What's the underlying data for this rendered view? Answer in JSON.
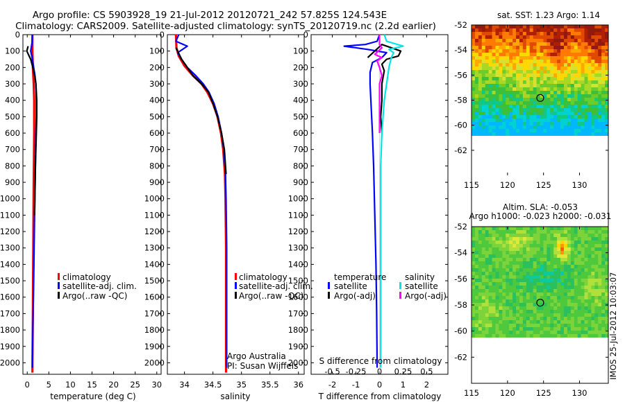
{
  "title": {
    "line1": "Argo profile: CS 5903928_19 21-Jul-2012 20120721_242 57.825S 124.543E",
    "line2": "Climatology: CARS2009. Satellite-adjusted climatology: synTS_20120719.nc (2.2d earlier)"
  },
  "side_label": "IMOS 25-Jul-2012 10:03:07",
  "colors": {
    "climatology": "#ff0000",
    "satellite": "#0000ff",
    "argo": "#000000",
    "sal_satellite": "#00e5e5",
    "sal_argo": "#ff00ff"
  },
  "depth_ticks": [
    0,
    100,
    200,
    300,
    400,
    500,
    600,
    700,
    800,
    900,
    1000,
    1100,
    1200,
    1300,
    1400,
    1500,
    1600,
    1700,
    1800,
    1900,
    2000
  ],
  "chart_data": [
    {
      "type": "line",
      "panel": "temperature",
      "xlabel": "temperature (deg C)",
      "ylabel": "",
      "xlim": [
        -1,
        31
      ],
      "ylim": [
        2070,
        0
      ],
      "xticks": [
        0,
        5,
        10,
        15,
        20,
        25,
        30
      ],
      "legend": [
        "climatology",
        "satellite-adj. clim.",
        "Argo(..raw -QC)"
      ],
      "series": [
        {
          "name": "climatology",
          "color": "#ff0000",
          "points": [
            [
              1.2,
              0
            ],
            [
              1.2,
              100
            ],
            [
              1.3,
              200
            ],
            [
              1.5,
              300
            ],
            [
              1.6,
              400
            ],
            [
              1.6,
              600
            ],
            [
              1.5,
              900
            ],
            [
              1.4,
              1300
            ],
            [
              1.3,
              1700
            ],
            [
              1.2,
              2000
            ],
            [
              1.2,
              2060
            ]
          ]
        },
        {
          "name": "satellite-adj. clim.",
          "color": "#0000ff",
          "points": [
            [
              1.2,
              0
            ],
            [
              1.1,
              50
            ],
            [
              0.8,
              100
            ],
            [
              1.2,
              150
            ],
            [
              1.5,
              200
            ],
            [
              1.8,
              250
            ],
            [
              2.0,
              300
            ],
            [
              2.1,
              400
            ],
            [
              2.1,
              500
            ],
            [
              2.0,
              600
            ],
            [
              1.9,
              800
            ],
            [
              1.7,
              1100
            ],
            [
              1.5,
              1500
            ],
            [
              1.3,
              1800
            ],
            [
              1.2,
              2030
            ]
          ]
        },
        {
          "name": "Argo(..raw -QC)",
          "color": "#000000",
          "points": [
            [
              0.2,
              70
            ],
            [
              -0.1,
              100
            ],
            [
              0.8,
              150
            ],
            [
              1.3,
              200
            ],
            [
              1.7,
              250
            ],
            [
              2.0,
              300
            ],
            [
              2.2,
              400
            ],
            [
              2.2,
              500
            ],
            [
              2.1,
              600
            ],
            [
              1.9,
              800
            ],
            [
              1.7,
              1100
            ]
          ]
        }
      ]
    },
    {
      "type": "line",
      "panel": "salinity",
      "xlabel": "salinity",
      "ylabel": "",
      "xlim": [
        33.7,
        36.1
      ],
      "ylim": [
        2070,
        0
      ],
      "xticks": [
        34,
        34.5,
        35,
        35.5,
        36
      ],
      "legend": [
        "climatology",
        "satellite-adj. clim.",
        "Argo(..raw -QC)"
      ],
      "annotation": [
        "Argo Australia",
        "PI: Susan Wijffels"
      ],
      "series": [
        {
          "name": "climatology",
          "color": "#ff0000",
          "points": [
            [
              33.85,
              0
            ],
            [
              33.86,
              80
            ],
            [
              33.9,
              130
            ],
            [
              34.0,
              190
            ],
            [
              34.15,
              250
            ],
            [
              34.3,
              300
            ],
            [
              34.4,
              350
            ],
            [
              34.5,
              420
            ],
            [
              34.58,
              500
            ],
            [
              34.64,
              600
            ],
            [
              34.68,
              700
            ],
            [
              34.71,
              850
            ],
            [
              34.72,
              1000
            ],
            [
              34.73,
              1300
            ],
            [
              34.73,
              2060
            ]
          ]
        },
        {
          "name": "satellite-adj. clim.",
          "color": "#0000ff",
          "points": [
            [
              33.9,
              0
            ],
            [
              33.85,
              40
            ],
            [
              34.05,
              70
            ],
            [
              33.88,
              110
            ],
            [
              33.95,
              150
            ],
            [
              34.05,
              200
            ],
            [
              34.2,
              250
            ],
            [
              34.33,
              300
            ],
            [
              34.43,
              350
            ],
            [
              34.52,
              420
            ],
            [
              34.59,
              500
            ],
            [
              34.65,
              600
            ],
            [
              34.69,
              700
            ],
            [
              34.72,
              850
            ],
            [
              34.73,
              1000
            ],
            [
              34.74,
              1300
            ],
            [
              34.74,
              2030
            ]
          ]
        },
        {
          "name": "Argo(..raw -QC)",
          "color": "#000000",
          "points": [
            [
              33.85,
              80
            ],
            [
              33.88,
              100
            ],
            [
              33.95,
              150
            ],
            [
              34.05,
              200
            ],
            [
              34.15,
              250
            ],
            [
              34.3,
              300
            ],
            [
              34.42,
              350
            ],
            [
              34.5,
              420
            ],
            [
              34.58,
              500
            ],
            [
              34.65,
              600
            ],
            [
              34.7,
              700
            ],
            [
              34.72,
              800
            ],
            [
              34.73,
              850
            ]
          ]
        }
      ]
    },
    {
      "type": "line",
      "panel": "difference",
      "xlabel": "T difference from climatology",
      "ylabel": "",
      "x2label": "S difference from climatology",
      "xlim": [
        -2.9,
        2.9
      ],
      "ylim": [
        2070,
        0
      ],
      "xticks": [
        -2,
        -1,
        0,
        1,
        2
      ],
      "s_tick_labels": [
        "-0.5",
        "-0.25",
        "0",
        "0.25",
        "0.5"
      ],
      "legend": [
        "temperature",
        "satellite",
        "Argo(-adj)",
        "salinity",
        "satellite",
        "Argo(-adj)"
      ],
      "series": [
        {
          "name": "temperature satellite",
          "color": "#0000ff",
          "points": [
            [
              0,
              0
            ],
            [
              -0.1,
              40
            ],
            [
              -0.6,
              60
            ],
            [
              -1.5,
              70
            ],
            [
              -0.5,
              90
            ],
            [
              0.3,
              110
            ],
            [
              0.1,
              140
            ],
            [
              -0.3,
              170
            ],
            [
              -0.4,
              230
            ],
            [
              -0.4,
              300
            ],
            [
              -0.35,
              450
            ],
            [
              -0.3,
              600
            ],
            [
              -0.25,
              800
            ],
            [
              -0.2,
              1100
            ],
            [
              -0.15,
              1400
            ],
            [
              -0.12,
              1700
            ],
            [
              -0.1,
              2030
            ]
          ]
        },
        {
          "name": "temperature Argo(-adj)",
          "color": "#000000",
          "points": [
            [
              -0.5,
              140
            ],
            [
              0.1,
              60
            ],
            [
              0.5,
              80
            ],
            [
              0.9,
              100
            ],
            [
              0.8,
              130
            ],
            [
              0.3,
              150
            ],
            [
              0.1,
              180
            ],
            [
              0.2,
              220
            ],
            [
              0.1,
              300
            ],
            [
              0.1,
              400
            ],
            [
              0.05,
              500
            ],
            [
              0.1,
              600
            ]
          ]
        },
        {
          "name": "salinity satellite",
          "color": "#00e5e5",
          "points": [
            [
              0.2,
              0
            ],
            [
              0.3,
              40
            ],
            [
              1.0,
              70
            ],
            [
              0.4,
              90
            ],
            [
              0.6,
              110
            ],
            [
              0.5,
              140
            ],
            [
              0.4,
              200
            ],
            [
              0.3,
              300
            ],
            [
              0.2,
              400
            ],
            [
              0.15,
              500
            ],
            [
              0.1,
              600
            ],
            [
              0.05,
              800
            ],
            [
              0.05,
              1000
            ],
            [
              0.05,
              1500
            ],
            [
              0.05,
              2030
            ]
          ]
        },
        {
          "name": "salinity Argo(-adj)",
          "color": "#ff00ff",
          "points": [
            [
              0,
              0
            ],
            [
              0,
              60
            ],
            [
              0.1,
              80
            ],
            [
              -0.2,
              120
            ],
            [
              0.1,
              140
            ],
            [
              -0.1,
              160
            ],
            [
              0,
              200
            ],
            [
              0.1,
              250
            ],
            [
              0,
              300
            ],
            [
              0,
              400
            ],
            [
              0,
              500
            ],
            [
              0,
              600
            ]
          ]
        }
      ]
    },
    {
      "type": "heatmap",
      "panel": "sst_map",
      "title": "sat. SST: 1.23 Argo: 1.14",
      "xlim": [
        115,
        134
      ],
      "ylim": [
        -64,
        -52
      ],
      "xticks": [
        115,
        120,
        125,
        130
      ],
      "yticks": [
        -52,
        -54,
        -56,
        -58,
        -60,
        -62
      ],
      "marker": [
        124.543,
        -57.825
      ]
    },
    {
      "type": "heatmap",
      "panel": "sla_map",
      "title": [
        "Altim. SLA: -0.053",
        "Argo h1000: -0.023 h2000: -0.031"
      ],
      "xlim": [
        115,
        134
      ],
      "ylim": [
        -64,
        -52
      ],
      "xticks": [
        115,
        120,
        125,
        130
      ],
      "yticks": [
        -52,
        -54,
        -56,
        -58,
        -60,
        -62
      ],
      "marker": [
        124.543,
        -57.825
      ]
    }
  ]
}
